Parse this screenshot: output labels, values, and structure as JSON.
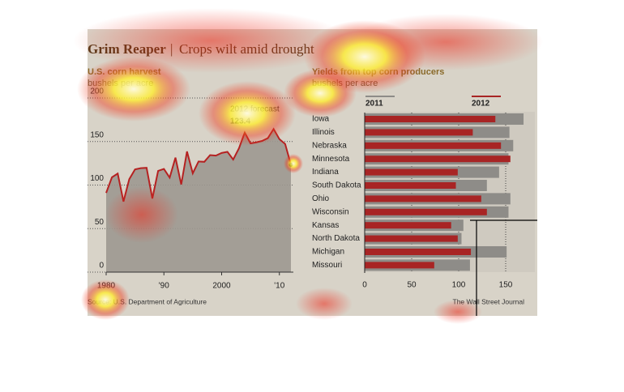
{
  "title": "Grim Reaper",
  "subtitle": "Crops wilt amid drought",
  "source": "Source: U.S. Department of Agriculture",
  "credit": "The Wall Street Journal",
  "chart_data": [
    {
      "type": "area",
      "title": "U.S. corn harvest",
      "y_label": "bushels per acre",
      "annotation": "2012 forecast",
      "x": [
        1980,
        1981,
        1982,
        1983,
        1984,
        1985,
        1986,
        1987,
        1988,
        1989,
        1990,
        1991,
        1992,
        1993,
        1994,
        1995,
        1996,
        1997,
        1998,
        1999,
        2000,
        2001,
        2002,
        2003,
        2004,
        2005,
        2006,
        2007,
        2008,
        2009,
        2010,
        2011,
        2012
      ],
      "values": [
        91.0,
        108.9,
        113.2,
        81.1,
        106.7,
        118.0,
        119.4,
        119.8,
        84.6,
        116.3,
        118.5,
        108.6,
        131.5,
        100.7,
        138.6,
        113.5,
        127.1,
        126.7,
        134.4,
        133.8,
        136.9,
        138.2,
        129.3,
        142.2,
        160.3,
        147.9,
        149.1,
        150.7,
        153.9,
        164.4,
        152.8,
        147.2,
        123.4
      ],
      "color": "#b52121",
      "fill": "#9d9890",
      "xlim": [
        1980,
        2012
      ],
      "xticks": [
        1980,
        {
          "value": 1990,
          "label": "'90"
        },
        2000,
        {
          "value": 2010,
          "label": "'10"
        }
      ],
      "ylim": [
        0,
        200
      ],
      "yticks": [
        0,
        50,
        100,
        150,
        200
      ],
      "grid": true
    },
    {
      "type": "hbar",
      "title": "Yields from top corn producers",
      "x_label": "bushels per acre",
      "categories": [
        "Iowa",
        "Illinois",
        "Nebraska",
        "Minnesota",
        "Indiana",
        "South Dakota",
        "Ohio",
        "Wisconsin",
        "Kansas",
        "North Dakota",
        "Michigan",
        "Missouri"
      ],
      "series": [
        {
          "name": "2011",
          "color": "#8e8c88",
          "values": [
            169,
            154,
            158,
            153,
            143,
            130,
            155,
            153,
            105,
            103,
            151,
            112
          ]
        },
        {
          "name": "2012",
          "color": "#a82424",
          "values": [
            139,
            115,
            145,
            155,
            99,
            97,
            124,
            130,
            92,
            99,
            113,
            74
          ]
        }
      ],
      "xlim": [
        0,
        180
      ],
      "xticks": [
        0,
        50,
        100,
        150
      ],
      "grid": true
    }
  ]
}
